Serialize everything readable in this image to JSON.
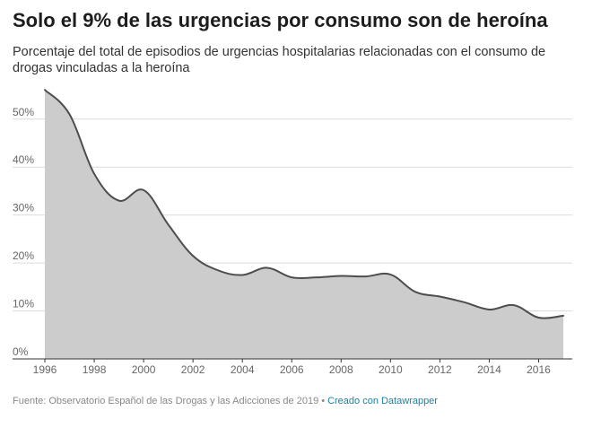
{
  "header": {
    "title": "Solo el 9% de las urgencias por consumo son de heroína",
    "subtitle": "Porcentaje del total de episodios de urgencias hospitalarias relacionadas con el consumo de drogas vinculadas a la heroína"
  },
  "footer": {
    "source": "Fuente: Observatorio Español de las Drogas y las Adicciones de 2019",
    "separator": "•",
    "credit": "Creado con Datawrapper"
  },
  "colors": {
    "area_fill": "#cccccc",
    "line": "#4d4d4d",
    "grid": "#dcdcdc",
    "baseline": "#333333"
  },
  "chart_data": {
    "type": "area",
    "title": "Solo el 9% de las urgencias por consumo son de heroína",
    "xlabel": "",
    "ylabel": "",
    "x": [
      1996,
      1997,
      1998,
      1999,
      2000,
      2001,
      2002,
      2003,
      2004,
      2005,
      2006,
      2007,
      2008,
      2009,
      2010,
      2011,
      2012,
      2013,
      2014,
      2015,
      2016,
      2017
    ],
    "values": [
      56.1,
      51.0,
      38.6,
      33.0,
      35.2,
      28.0,
      21.5,
      18.5,
      17.5,
      19.0,
      17.0,
      17.0,
      17.3,
      17.2,
      17.6,
      14.0,
      13.0,
      11.8,
      10.3,
      11.2,
      8.6,
      9.0
    ],
    "xlim": [
      1996,
      2017
    ],
    "ylim": [
      0,
      58
    ],
    "x_ticks": [
      1996,
      1998,
      2000,
      2002,
      2004,
      2006,
      2008,
      2010,
      2012,
      2014,
      2016
    ],
    "y_ticks": [
      0,
      10,
      20,
      30,
      40,
      50
    ],
    "y_tick_labels": [
      "0%",
      "10%",
      "20%",
      "30%",
      "40%",
      "50%"
    ],
    "grid": true,
    "legend": "none"
  }
}
